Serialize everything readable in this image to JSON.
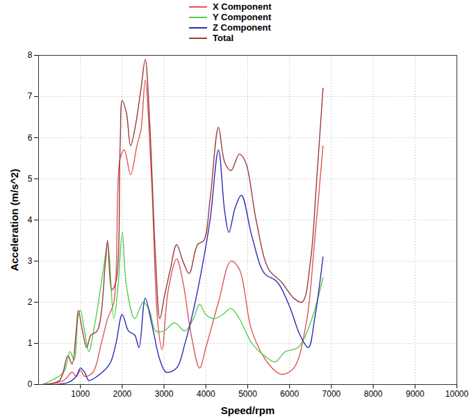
{
  "chart_data": {
    "type": "line",
    "x_label": "Speed/rpm",
    "y_label": "Acceleration (m/s^2)",
    "xlim": [
      0,
      10000
    ],
    "xticks": [
      1000,
      2000,
      3000,
      4000,
      5000,
      6000,
      7000,
      8000,
      9000,
      10000
    ],
    "ylim": [
      0,
      8
    ],
    "yticks": [
      0,
      1,
      2,
      3,
      4,
      5,
      6,
      7,
      8
    ],
    "grid": true,
    "legend": "top",
    "series": [
      {
        "name": "X Component",
        "color": "#e05555",
        "x": [
          100,
          600,
          800,
          900,
          1000,
          1100,
          1300,
          1500,
          1650,
          1800,
          1950,
          2050,
          2200,
          2350,
          2450,
          2550,
          2700,
          2850,
          2950,
          3100,
          3300,
          3450,
          3650,
          3850,
          4000,
          4300,
          4600,
          4800,
          5100,
          5500,
          5800,
          6100,
          6400,
          6600,
          6800
        ],
        "values": [
          0,
          0.1,
          0.3,
          0.2,
          0.35,
          0.2,
          0.3,
          1.0,
          1.6,
          2.0,
          5.5,
          5.7,
          5.1,
          5.8,
          6.2,
          7.4,
          5.0,
          1.5,
          0.85,
          2.3,
          3.05,
          2.5,
          1.2,
          0.4,
          0.9,
          2.0,
          3.0,
          2.8,
          1.3,
          0.5,
          0.25,
          0.4,
          1.5,
          3.5,
          5.8
        ]
      },
      {
        "name": "Y Component",
        "color": "#55cc55",
        "x": [
          100,
          600,
          750,
          850,
          950,
          1000,
          1100,
          1200,
          1350,
          1550,
          1650,
          1800,
          1900,
          2000,
          2100,
          2300,
          2500,
          2650,
          2800,
          3000,
          3250,
          3500,
          3700,
          3850,
          4000,
          4200,
          4400,
          4600,
          4800,
          5100,
          5400,
          5650,
          5900,
          6200,
          6500,
          6800
        ],
        "values": [
          0,
          0.3,
          0.8,
          0.6,
          1.7,
          1.8,
          1.3,
          0.8,
          1.5,
          2.8,
          3.4,
          1.6,
          2.4,
          3.7,
          2.4,
          1.6,
          2.0,
          1.8,
          1.3,
          1.3,
          1.5,
          1.3,
          1.6,
          1.95,
          1.7,
          1.6,
          1.7,
          1.85,
          1.6,
          1.0,
          0.7,
          0.55,
          0.8,
          0.9,
          1.5,
          2.6
        ]
      },
      {
        "name": "Z Component",
        "color": "#2b2bb5",
        "x": [
          100,
          700,
          900,
          1000,
          1100,
          1200,
          1400,
          1700,
          1850,
          2000,
          2150,
          2300,
          2400,
          2550,
          2700,
          2900,
          3050,
          3300,
          3500,
          3700,
          3900,
          4100,
          4300,
          4450,
          4550,
          4700,
          4850,
          5100,
          5400,
          5700,
          6000,
          6250,
          6450,
          6600,
          6800
        ],
        "values": [
          0,
          0.05,
          0.2,
          0.4,
          0.3,
          0.1,
          0.2,
          0.5,
          1.0,
          1.7,
          1.3,
          1.2,
          0.9,
          2.1,
          1.5,
          0.6,
          0.3,
          0.4,
          1.0,
          1.8,
          2.8,
          4.0,
          5.7,
          4.2,
          3.7,
          4.3,
          4.6,
          3.6,
          2.7,
          2.5,
          1.9,
          1.2,
          0.9,
          1.6,
          3.1
        ]
      },
      {
        "name": "Total",
        "color": "#9b3b3b",
        "x": [
          100,
          500,
          700,
          800,
          900,
          950,
          1050,
          1150,
          1250,
          1400,
          1600,
          1650,
          1750,
          1850,
          1950,
          2000,
          2100,
          2200,
          2300,
          2450,
          2550,
          2650,
          2800,
          2900,
          3000,
          3150,
          3300,
          3450,
          3600,
          3800,
          3950,
          4100,
          4300,
          4450,
          4600,
          4800,
          4950,
          5200,
          5500,
          5800,
          6100,
          6300,
          6500,
          6650,
          6800
        ],
        "values": [
          0,
          0.1,
          0.7,
          0.5,
          1.3,
          1.8,
          1.3,
          0.9,
          1.2,
          1.3,
          3.0,
          3.5,
          2.3,
          2.5,
          5.8,
          6.9,
          6.6,
          5.8,
          6.2,
          7.2,
          7.9,
          6.5,
          3.0,
          1.6,
          2.1,
          2.8,
          3.4,
          3.0,
          2.7,
          3.4,
          3.5,
          4.5,
          6.25,
          5.4,
          5.2,
          5.6,
          5.4,
          4.0,
          2.8,
          2.5,
          2.1,
          2.0,
          3.0,
          5.0,
          7.2
        ]
      }
    ]
  }
}
